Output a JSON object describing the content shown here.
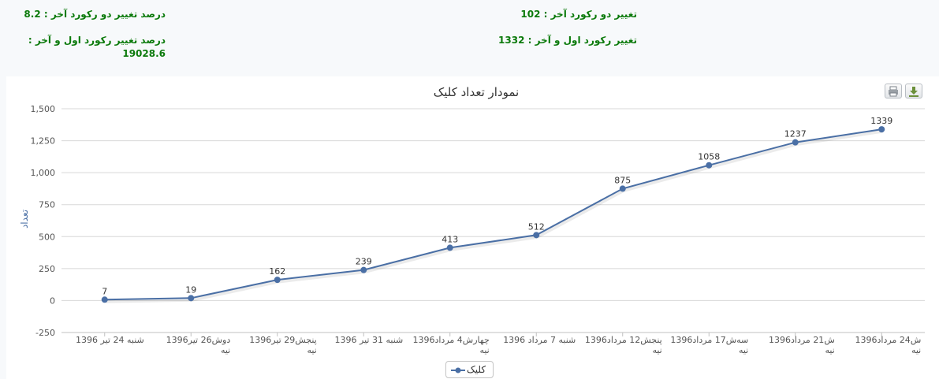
{
  "stats": {
    "last_two_change": "تغییر دو رکورد آخر : 102",
    "last_two_pct": "درصد تغییر دو رکورد آخر : 8.2",
    "first_last_change": "تغییر رکورد اول و آخر : 1332",
    "first_last_pct": "درصد تغییر رکورد اول و آخر : 19028.6"
  },
  "toolbar": {
    "print_icon": "printer-icon",
    "download_icon": "download-icon"
  },
  "colors": {
    "series": "#4a6fa5",
    "stat_text": "#0b7a0b",
    "grid": "#d8d8d8"
  },
  "chart_data": {
    "type": "line",
    "title": "نمودار تعداد کلیک",
    "ylabel": "تعداد",
    "ylim": [
      -250,
      1500
    ],
    "yticks": [
      "1,500",
      "1,250",
      "1,000",
      "750",
      "500",
      "250",
      "0",
      "-250"
    ],
    "ytick_values": [
      1500,
      1250,
      1000,
      750,
      500,
      250,
      0,
      -250
    ],
    "grid": true,
    "legend_position": "bottom-center",
    "categories": [
      [
        "شنبه 24 تیر 1396"
      ],
      [
        "دوش26 تیر1396",
        "نیه"
      ],
      [
        "پنجش29 تیر1396",
        "نیه"
      ],
      [
        "شنبه 31 تیر 1396"
      ],
      [
        "چهارش4 مرداد1396",
        "نیه"
      ],
      [
        "شنبه 7 مرداد 1396"
      ],
      [
        "پنجش12 مرداد1396",
        "نیه"
      ],
      [
        "سه‌ش17 مرداد1396",
        "نیه"
      ],
      [
        "ش21 مرداد1396",
        "نیه"
      ],
      [
        "ش24 مرداد1396",
        "نیه"
      ]
    ],
    "series": [
      {
        "name": "کلیک",
        "values": [
          7,
          19,
          162,
          239,
          413,
          512,
          875,
          1058,
          1237,
          1339
        ]
      }
    ]
  }
}
